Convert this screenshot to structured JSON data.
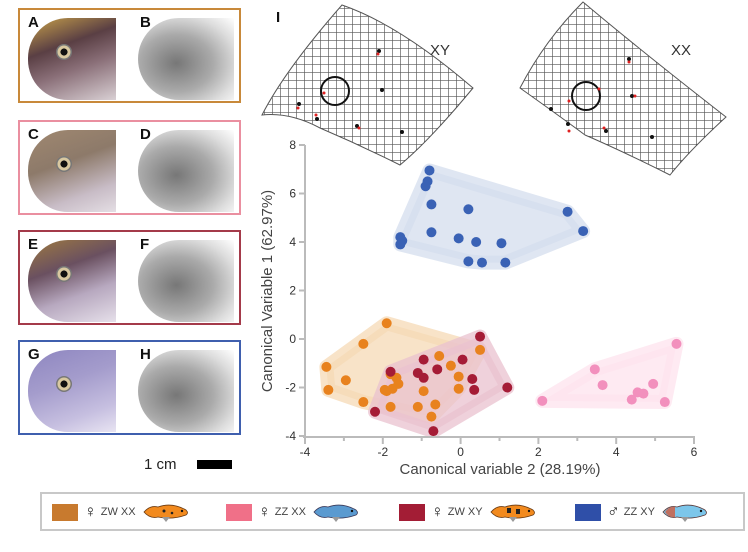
{
  "panels": [
    {
      "photo_label": "A",
      "xray_label": "B",
      "border": "#c8893a",
      "genotype": "ZW XX",
      "photo_color": "#6b4b4b"
    },
    {
      "photo_label": "C",
      "xray_label": "D",
      "border": "#ea8fa0",
      "genotype": "ZZ XX",
      "photo_color": "#8a7868"
    },
    {
      "photo_label": "E",
      "xray_label": "F",
      "border": "#a43a4a",
      "genotype": "ZW XY",
      "photo_color": "#7a6070"
    },
    {
      "photo_label": "G",
      "xray_label": "H",
      "border": "#3f5fae",
      "genotype": "ZZ XY",
      "photo_color": "#8f86bb"
    }
  ],
  "scale_bar": {
    "label": "1 cm"
  },
  "panel_I": {
    "label": "I",
    "grid_labels": [
      "XY",
      "XX"
    ]
  },
  "chart_data": {
    "type": "scatter",
    "title": "",
    "xlabel": "Canonical variable 2 (28.19%)",
    "ylabel": "Canonical Variable 1 (62.97%)",
    "xlim": [
      -4,
      6
    ],
    "ylim": [
      -4,
      8
    ],
    "xticks": [
      "-4",
      "-2",
      "0",
      "2",
      "4",
      "6"
    ],
    "yticks": [
      "8",
      "6",
      "4",
      "2",
      "0",
      "-2",
      "-4"
    ],
    "grid": false,
    "hulls": true,
    "series": [
      {
        "name": "♀ ZW XX",
        "color": "#e8821e",
        "hull": "#f6d9b6",
        "points": [
          [
            -1.9,
            0.65
          ],
          [
            -2.5,
            -0.2
          ],
          [
            -3.45,
            -1.15
          ],
          [
            -2.95,
            -1.7
          ],
          [
            -3.4,
            -2.1
          ],
          [
            -2.5,
            -2.6
          ],
          [
            -1.8,
            -1.45
          ],
          [
            -1.65,
            -1.6
          ],
          [
            -1.6,
            -1.85
          ],
          [
            -1.75,
            -2.05
          ],
          [
            -1.9,
            -2.15
          ],
          [
            -1.95,
            -2.1
          ],
          [
            -1.8,
            -2.8
          ],
          [
            -0.55,
            -0.7
          ],
          [
            -0.25,
            -1.1
          ],
          [
            -0.05,
            -1.55
          ],
          [
            -0.95,
            -2.15
          ],
          [
            -1.1,
            -2.8
          ],
          [
            -0.65,
            -2.7
          ],
          [
            -0.75,
            -3.2
          ],
          [
            -0.05,
            -2.05
          ],
          [
            0.5,
            -0.45
          ]
        ]
      },
      {
        "name": "♀ ZZ XX",
        "color": "#f290bd",
        "hull": "#fde3ee",
        "points": [
          [
            2.1,
            -2.55
          ],
          [
            3.45,
            -1.25
          ],
          [
            3.65,
            -1.9
          ],
          [
            4.4,
            -2.5
          ],
          [
            4.55,
            -2.2
          ],
          [
            4.7,
            -2.25
          ],
          [
            4.95,
            -1.85
          ],
          [
            5.25,
            -2.6
          ],
          [
            5.55,
            -0.2
          ]
        ]
      },
      {
        "name": "♀ ZW XY",
        "color": "#a51c36",
        "hull": "#e9c2cf",
        "points": [
          [
            -1.8,
            -1.35
          ],
          [
            -1.1,
            -1.4
          ],
          [
            -0.95,
            -1.6
          ],
          [
            -0.95,
            -0.85
          ],
          [
            -0.6,
            -1.25
          ],
          [
            0.05,
            -0.85
          ],
          [
            0.5,
            0.1
          ],
          [
            0.3,
            -1.65
          ],
          [
            0.35,
            -2.1
          ],
          [
            1.2,
            -2.0
          ],
          [
            -2.2,
            -3.0
          ],
          [
            -0.7,
            -3.8
          ]
        ]
      },
      {
        "name": "♂ ZZ XY",
        "color": "#3a62b5",
        "hull": "#d4ddee",
        "points": [
          [
            -0.8,
            6.95
          ],
          [
            -0.85,
            6.5
          ],
          [
            -0.9,
            6.3
          ],
          [
            -0.75,
            5.55
          ],
          [
            0.2,
            5.35
          ],
          [
            2.75,
            5.25
          ],
          [
            3.15,
            4.45
          ],
          [
            -1.55,
            4.2
          ],
          [
            -1.5,
            4.05
          ],
          [
            -1.55,
            3.9
          ],
          [
            -0.75,
            4.4
          ],
          [
            -0.05,
            4.15
          ],
          [
            0.4,
            4.0
          ],
          [
            1.05,
            3.95
          ],
          [
            0.2,
            3.2
          ],
          [
            0.55,
            3.15
          ],
          [
            1.15,
            3.15
          ]
        ]
      }
    ]
  },
  "legend": [
    {
      "sex": "♀",
      "genotype": "ZW XX",
      "color": "#c87a2e",
      "fish": "orange-blotched"
    },
    {
      "sex": "♀",
      "genotype": "ZZ XX",
      "color": "#f07088",
      "fish": "blue"
    },
    {
      "sex": "♀",
      "genotype": "ZW XY",
      "color": "#a31d35",
      "fish": "orange-blotched"
    },
    {
      "sex": "♂",
      "genotype": "ZZ XY",
      "color": "#2f4fa8",
      "fish": "light-blue"
    }
  ]
}
